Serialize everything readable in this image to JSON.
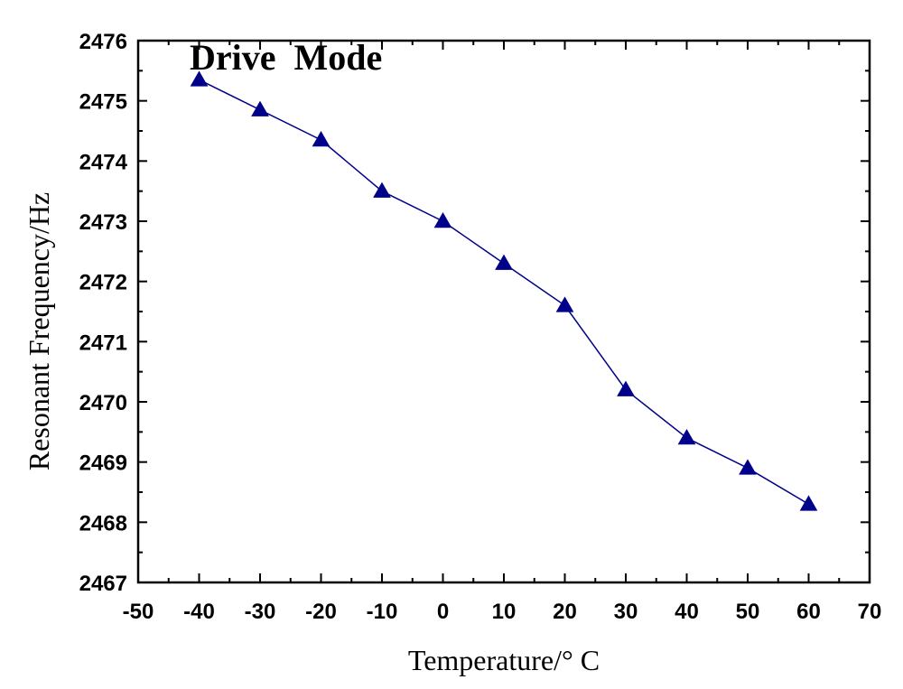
{
  "chart_data": {
    "type": "line",
    "title": "Drive  Mode",
    "xlabel": "Temperature/° C",
    "ylabel": "Resonant Frequency/Hz",
    "xlim": [
      -50,
      70
    ],
    "ylim": [
      2467,
      2476
    ],
    "x_ticks": [
      -50,
      -40,
      -30,
      -20,
      -10,
      0,
      10,
      20,
      30,
      40,
      50,
      60,
      70
    ],
    "y_ticks": [
      2467,
      2468,
      2469,
      2470,
      2471,
      2472,
      2473,
      2474,
      2475,
      2476
    ],
    "grid": false,
    "legend": "none",
    "series": [
      {
        "marker": "triangle",
        "color": "#00008B",
        "x": [
          -40,
          -30,
          -20,
          -10,
          0,
          10,
          20,
          30,
          40,
          50,
          60
        ],
        "y": [
          2475.35,
          2474.85,
          2474.35,
          2473.5,
          2473.0,
          2472.3,
          2471.6,
          2470.2,
          2469.4,
          2468.9,
          2468.3
        ]
      }
    ]
  }
}
